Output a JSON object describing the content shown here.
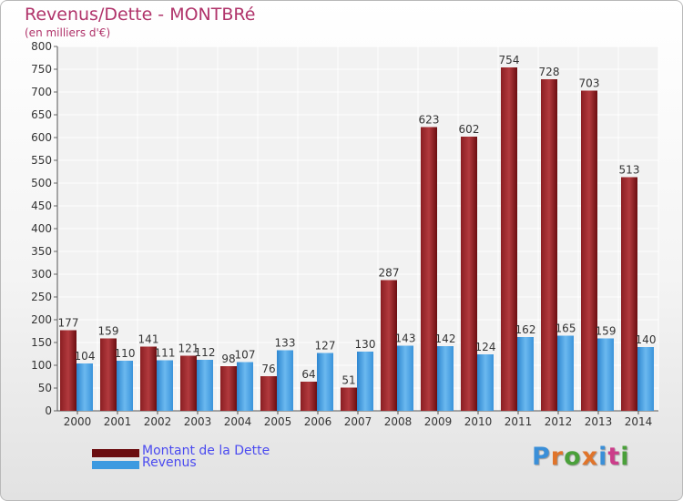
{
  "title": "Revenus/Dette - MONTBRé",
  "subtitle": "(en milliers d'€)",
  "logo_text": "Proxiti",
  "colors": {
    "title": "#b0336a",
    "dette": "#6b0d10",
    "revenus": "#3d9ae0",
    "legend_text": "#4a4af0"
  },
  "legend": [
    {
      "label": "Montant de la Dette",
      "color": "#6b0d10"
    },
    {
      "label": "Revenus",
      "color": "#3d9ae0"
    }
  ],
  "chart_data": {
    "type": "bar",
    "title": "Revenus/Dette - MONTBRé",
    "subtitle": "(en milliers d'€)",
    "categories": [
      "2000",
      "2001",
      "2002",
      "2003",
      "2004",
      "2005",
      "2006",
      "2007",
      "2008",
      "2009",
      "2010",
      "2011",
      "2012",
      "2013",
      "2014"
    ],
    "series": [
      {
        "name": "Montant de la Dette",
        "values": [
          177,
          159,
          141,
          121,
          98,
          76,
          64,
          51,
          287,
          623,
          602,
          754,
          728,
          703,
          513
        ]
      },
      {
        "name": "Revenus",
        "values": [
          104,
          110,
          111,
          112,
          107,
          133,
          127,
          130,
          143,
          142,
          124,
          162,
          165,
          159,
          140
        ]
      }
    ],
    "ylim": [
      0,
      800
    ],
    "yticks": [
      0,
      50,
      100,
      150,
      200,
      250,
      300,
      350,
      400,
      450,
      500,
      550,
      600,
      650,
      700,
      750,
      800
    ],
    "grid": true,
    "legend_position": "bottom-left"
  }
}
